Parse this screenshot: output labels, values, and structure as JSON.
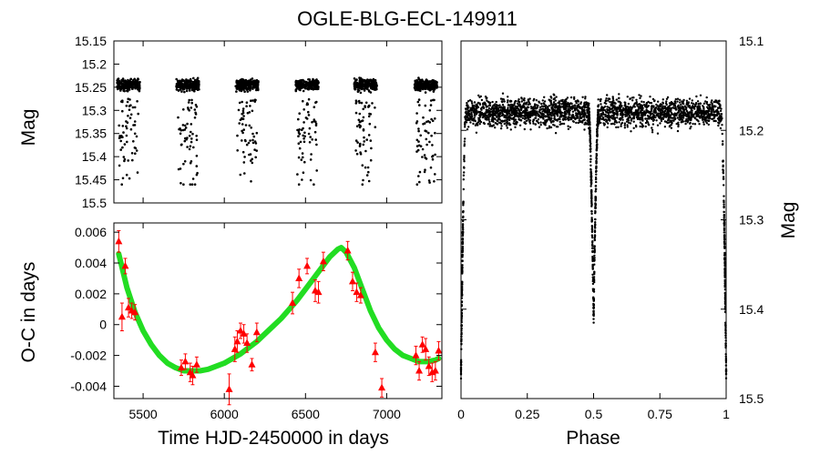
{
  "title": "OGLE-BLG-ECL-149911",
  "colors": {
    "points": "#000000",
    "oc_points": "#ff0000",
    "oc_fit": "#22dd22",
    "axes": "#000000"
  },
  "chart_data": [
    {
      "id": "lightcurve",
      "type": "scatter",
      "xlabel": "",
      "ylabel": "Mag",
      "xlim": [
        5320,
        7340
      ],
      "ylim": [
        15.5,
        15.15
      ],
      "y_inverted": true,
      "y_ticks": [
        "15.15",
        "15.2",
        "15.25",
        "15.3",
        "15.35",
        "15.4",
        "15.45",
        "15.5"
      ],
      "seasons": [
        {
          "start": 5340,
          "end": 5480
        },
        {
          "start": 5705,
          "end": 5845
        },
        {
          "start": 6070,
          "end": 6210
        },
        {
          "start": 6440,
          "end": 6580
        },
        {
          "start": 6800,
          "end": 6940
        },
        {
          "start": 7170,
          "end": 7310
        }
      ],
      "baseline_mag": 15.245,
      "eclipse_depth_mag": 0.22
    },
    {
      "id": "oc_diagram",
      "type": "scatter",
      "xlabel": "Time HJD-2450000 in days",
      "ylabel": "O-C in days",
      "xlim": [
        5320,
        7340
      ],
      "ylim": [
        -0.0048,
        0.0066
      ],
      "x_ticks": [
        "5500",
        "6000",
        "6500",
        "7000"
      ],
      "y_ticks": [
        "-0.004",
        "-0.002",
        "0",
        "0.002",
        "0.004",
        "0.006"
      ],
      "series": [
        {
          "kind": "points_with_errors",
          "x": [
            5350,
            5370,
            5390,
            5410,
            5430,
            5450,
            5735,
            5760,
            5790,
            5805,
            5830,
            6030,
            6065,
            6080,
            6100,
            6120,
            6140,
            6170,
            6200,
            6420,
            6460,
            6510,
            6560,
            6580,
            6610,
            6760,
            6790,
            6815,
            6840,
            6930,
            6970,
            7180,
            7200,
            7220,
            7240,
            7260,
            7280,
            7300,
            7320
          ],
          "y": [
            0.0054,
            0.0005,
            0.0038,
            0.0011,
            0.0009,
            0.0008,
            -0.0028,
            -0.0024,
            -0.0031,
            -0.0033,
            -0.0026,
            -0.0042,
            -0.0016,
            -0.0011,
            -0.0004,
            -0.0006,
            -0.0012,
            -0.0026,
            -0.0005,
            0.0014,
            0.003,
            0.0038,
            0.0022,
            0.0021,
            0.0041,
            0.0048,
            0.0028,
            0.0021,
            0.0019,
            -0.0018,
            -0.0041,
            -0.002,
            -0.003,
            -0.0013,
            -0.0016,
            -0.0027,
            -0.0031,
            -0.003,
            -0.0017
          ],
          "err": [
            0.0007,
            0.0009,
            0.0005,
            0.0006,
            0.0005,
            0.0005,
            0.0005,
            0.0005,
            0.0006,
            0.0006,
            0.0005,
            0.001,
            0.0008,
            0.0007,
            0.0005,
            0.0006,
            0.0006,
            0.0004,
            0.0006,
            0.0007,
            0.0006,
            0.0005,
            0.0007,
            0.0007,
            0.0006,
            0.0006,
            0.0006,
            0.0006,
            0.0005,
            0.0006,
            0.0006,
            0.0006,
            0.0006,
            0.0005,
            0.0007,
            0.0006,
            0.0006,
            0.0006,
            0.0006
          ]
        },
        {
          "kind": "fit_curve",
          "x": [
            5350,
            5400,
            5450,
            5500,
            5550,
            5600,
            5650,
            5700,
            5750,
            5800,
            5850,
            5900,
            5950,
            6000,
            6050,
            6100,
            6150,
            6200,
            6250,
            6300,
            6350,
            6400,
            6450,
            6500,
            6550,
            6600,
            6650,
            6700,
            6720,
            6750,
            6800,
            6850,
            6900,
            6950,
            7000,
            7050,
            7100,
            7150,
            7200,
            7250,
            7300,
            7320
          ],
          "y": [
            0.0046,
            0.0024,
            0.0008,
            -0.0004,
            -0.0013,
            -0.002,
            -0.0025,
            -0.0028,
            -0.003,
            -0.003,
            -0.003,
            -0.0029,
            -0.0027,
            -0.0025,
            -0.0022,
            -0.0019,
            -0.0015,
            -0.0011,
            -0.0006,
            -0.0001,
            0.0004,
            0.001,
            0.0016,
            0.0023,
            0.003,
            0.0037,
            0.0044,
            0.0049,
            0.005,
            0.0047,
            0.0037,
            0.0023,
            0.0009,
            -0.0002,
            -0.001,
            -0.0016,
            -0.002,
            -0.0022,
            -0.0024,
            -0.0024,
            -0.0023,
            -0.0022
          ]
        }
      ]
    },
    {
      "id": "phased",
      "type": "scatter",
      "xlabel": "Phase",
      "ylabel": "Mag",
      "xlim": [
        0,
        1
      ],
      "ylim": [
        15.5,
        15.1
      ],
      "y_inverted": true,
      "x_ticks": [
        "0",
        "0.25",
        "0.5",
        "0.75",
        "1"
      ],
      "y_ticks": [
        "15.1",
        "15.2",
        "15.3",
        "15.4",
        "15.5"
      ],
      "baseline_mag": 15.18,
      "primary_eclipse": {
        "phase": 0.0,
        "depth_mag": 15.47
      },
      "secondary_eclipse": {
        "phase": 0.5,
        "depth_mag": 15.41
      }
    }
  ]
}
